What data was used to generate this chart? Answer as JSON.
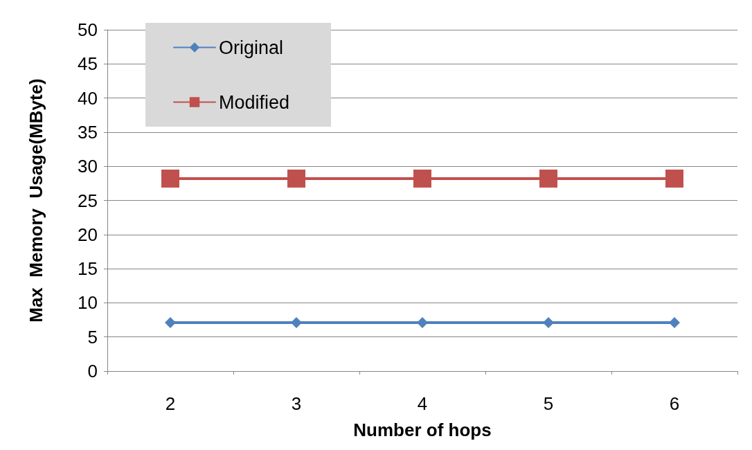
{
  "chart_data": {
    "type": "line",
    "xlabel": "Number of hops",
    "ylabel": "Max  Memory  Usage(MByte)",
    "categories": [
      "2",
      "3",
      "4",
      "5",
      "6"
    ],
    "series": [
      {
        "name": "Original",
        "color": "#4f81bd",
        "marker": "diamond",
        "values": [
          7.1,
          7.1,
          7.1,
          7.1,
          7.1
        ]
      },
      {
        "name": "Modified",
        "color": "#c0504d",
        "marker": "square",
        "values": [
          28.2,
          28.2,
          28.2,
          28.2,
          28.2
        ]
      }
    ],
    "ylim": [
      0,
      50
    ],
    "yticks": [
      0,
      5,
      10,
      15,
      20,
      25,
      30,
      35,
      40,
      45,
      50
    ],
    "grid": "y",
    "legend": "top left",
    "line_style": "solid"
  }
}
